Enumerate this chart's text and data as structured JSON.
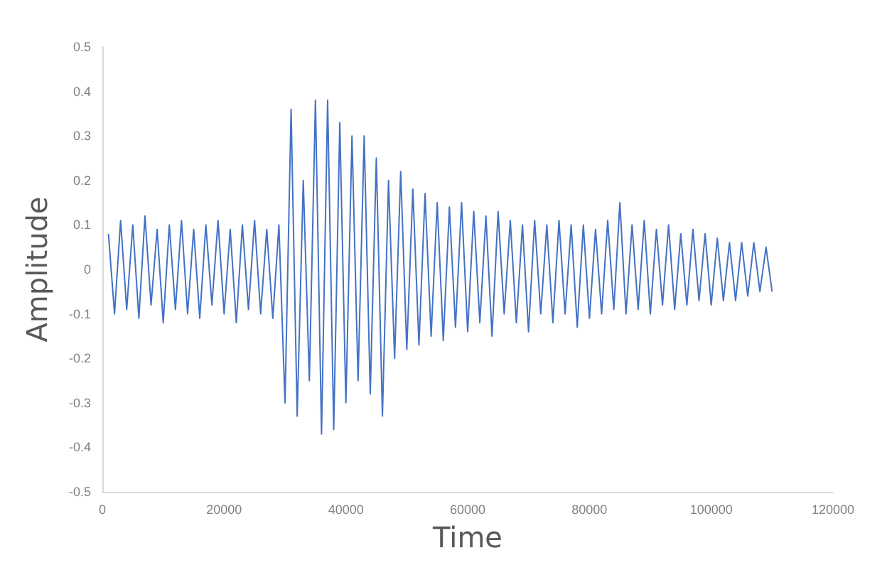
{
  "chart_data": {
    "type": "line",
    "xlabel": "Time",
    "ylabel": "Amplitude",
    "x": [
      1000,
      2000,
      3000,
      4000,
      5000,
      6000,
      7000,
      8000,
      9000,
      10000,
      11000,
      12000,
      13000,
      14000,
      15000,
      16000,
      17000,
      18000,
      19000,
      20000,
      21000,
      22000,
      23000,
      24000,
      25000,
      26000,
      27000,
      28000,
      29000,
      30000,
      31000,
      32000,
      33000,
      34000,
      35000,
      36000,
      37000,
      38000,
      39000,
      40000,
      41000,
      42000,
      43000,
      44000,
      45000,
      46000,
      47000,
      48000,
      49000,
      50000,
      51000,
      52000,
      53000,
      54000,
      55000,
      56000,
      57000,
      58000,
      59000,
      60000,
      61000,
      62000,
      63000,
      64000,
      65000,
      66000,
      67000,
      68000,
      69000,
      70000,
      71000,
      72000,
      73000,
      74000,
      75000,
      76000,
      77000,
      78000,
      79000,
      80000,
      81000,
      82000,
      83000,
      84000,
      85000,
      86000,
      87000,
      88000,
      89000,
      90000,
      91000,
      92000,
      93000,
      94000,
      95000,
      96000,
      97000,
      98000,
      99000,
      100000,
      101000,
      102000,
      103000,
      104000,
      105000,
      106000,
      107000,
      108000,
      109000,
      110000
    ],
    "series": [
      {
        "color": "#4472c4",
        "values": [
          0.08,
          -0.1,
          0.11,
          -0.09,
          0.1,
          -0.11,
          0.12,
          -0.08,
          0.09,
          -0.12,
          0.1,
          -0.09,
          0.11,
          -0.1,
          0.09,
          -0.11,
          0.1,
          -0.08,
          0.11,
          -0.1,
          0.09,
          -0.12,
          0.1,
          -0.09,
          0.11,
          -0.1,
          0.09,
          -0.11,
          0.1,
          -0.3,
          0.36,
          -0.33,
          0.2,
          -0.25,
          0.38,
          -0.37,
          0.38,
          -0.36,
          0.33,
          -0.3,
          0.3,
          -0.25,
          0.3,
          -0.28,
          0.25,
          -0.33,
          0.2,
          -0.2,
          0.22,
          -0.18,
          0.18,
          -0.17,
          0.17,
          -0.15,
          0.15,
          -0.16,
          0.14,
          -0.13,
          0.15,
          -0.14,
          0.13,
          -0.12,
          0.12,
          -0.15,
          0.13,
          -0.1,
          0.11,
          -0.12,
          0.1,
          -0.14,
          0.11,
          -0.1,
          0.1,
          -0.12,
          0.11,
          -0.1,
          0.1,
          -0.13,
          0.1,
          -0.11,
          0.09,
          -0.1,
          0.11,
          -0.09,
          0.15,
          -0.1,
          0.1,
          -0.09,
          0.11,
          -0.1,
          0.09,
          -0.08,
          0.1,
          -0.09,
          0.08,
          -0.08,
          0.09,
          -0.07,
          0.08,
          -0.08,
          0.07,
          -0.07,
          0.06,
          -0.07,
          0.06,
          -0.06,
          0.06,
          -0.05,
          0.05,
          -0.05
        ]
      }
    ],
    "xlim": [
      0,
      120000
    ],
    "xticks": [
      0,
      20000,
      40000,
      60000,
      80000,
      100000,
      120000
    ],
    "ylim": [
      -0.5,
      0.5
    ],
    "yticks": [
      -0.5,
      -0.4,
      -0.3,
      -0.2,
      -0.1,
      0,
      0.1,
      0.2,
      0.3,
      0.4,
      0.5
    ],
    "grid": false,
    "marker": "none",
    "line_style": "solid"
  }
}
